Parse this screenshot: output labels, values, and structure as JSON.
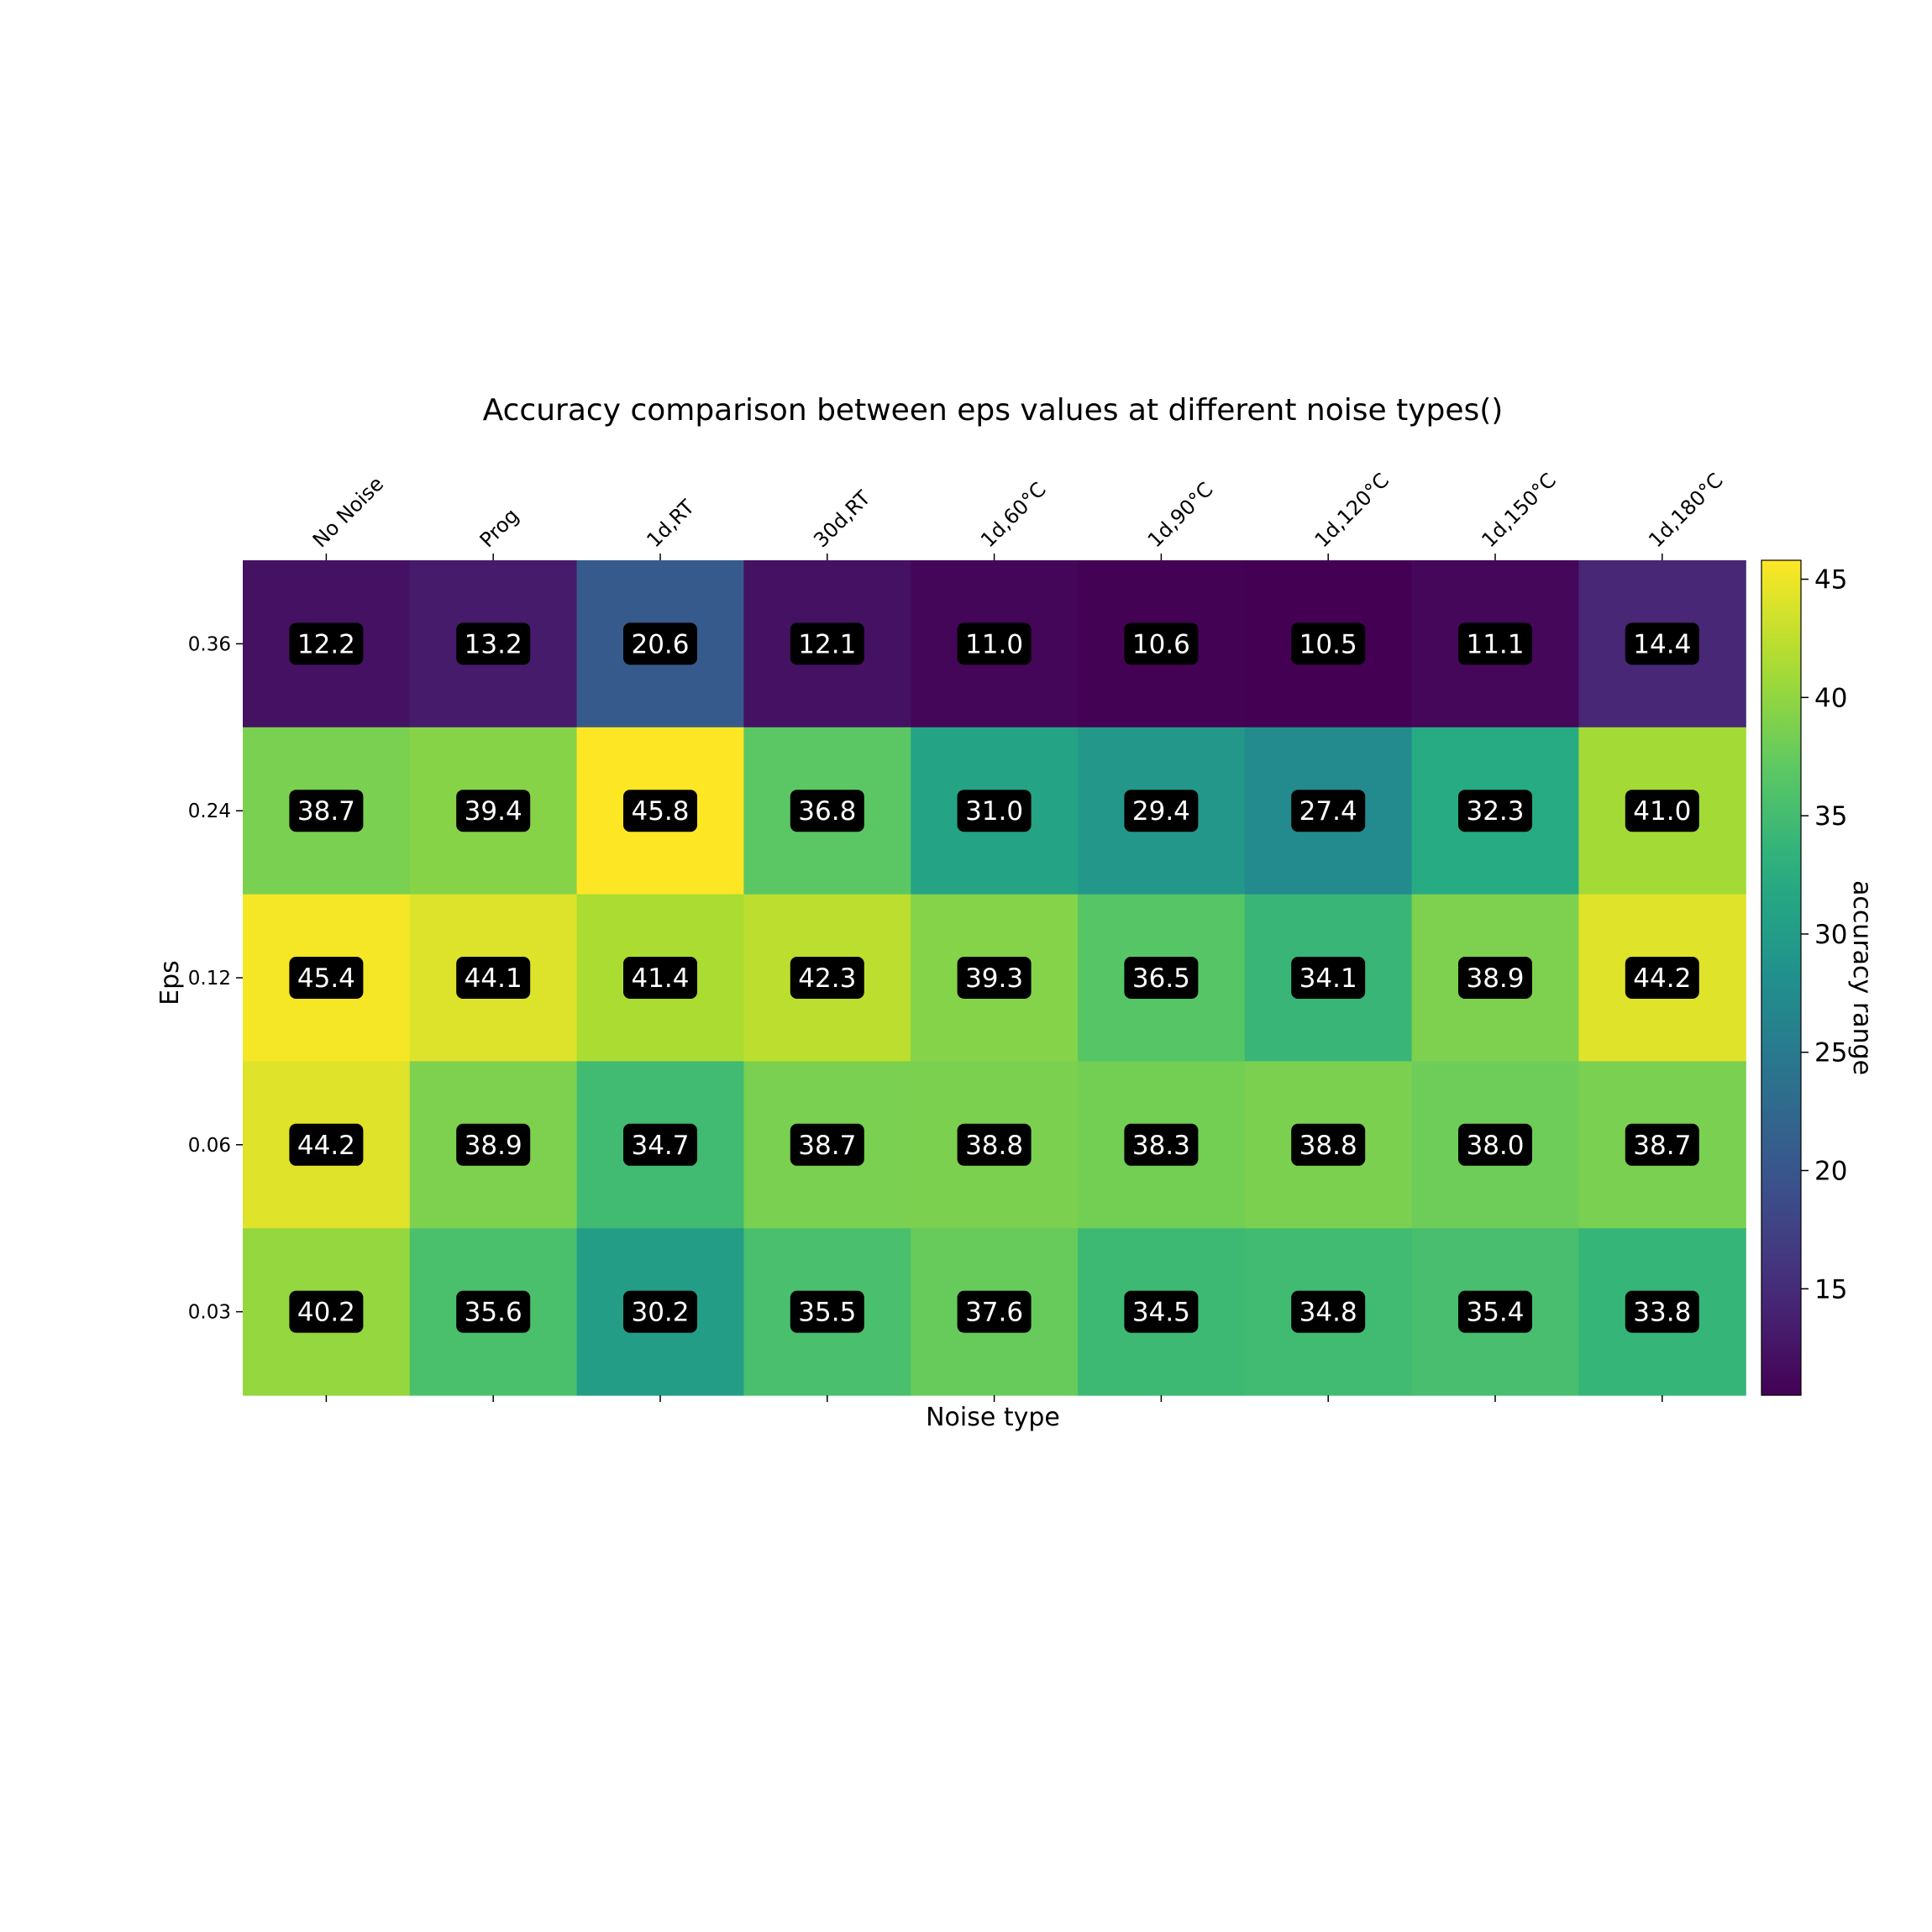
{
  "chart_data": {
    "type": "heatmap",
    "title": "Accuracy comparison between eps values at different noise types()",
    "xlabel": "Noise type",
    "ylabel": "Eps",
    "colorbar_label": "accuracy range",
    "colormap": "viridis",
    "x_axis_position": "top",
    "grid": false,
    "x_categories": [
      "No Noise",
      "Prog",
      "1d,RT",
      "30d,RT",
      "1d,60°C",
      "1d,90°C",
      "1d,120°C",
      "1d,150°C",
      "1d,180°C"
    ],
    "y_categories": [
      "0.36",
      "0.24",
      "0.12",
      "0.06",
      "0.03"
    ],
    "values": [
      [
        12.2,
        13.2,
        20.6,
        12.1,
        11.0,
        10.6,
        10.5,
        11.1,
        14.4
      ],
      [
        38.7,
        39.4,
        45.8,
        36.8,
        31.0,
        29.4,
        27.4,
        32.3,
        41.0
      ],
      [
        45.4,
        44.1,
        41.4,
        42.3,
        39.3,
        36.5,
        34.1,
        38.9,
        44.2
      ],
      [
        44.2,
        38.9,
        34.7,
        38.7,
        38.8,
        38.3,
        38.8,
        38.0,
        38.7
      ],
      [
        40.2,
        35.6,
        30.2,
        35.5,
        37.6,
        34.5,
        34.8,
        35.4,
        33.8
      ]
    ],
    "color_range": [
      10.5,
      45.8
    ],
    "colorbar_ticks": [
      15,
      20,
      25,
      30,
      35,
      40,
      45
    ]
  }
}
